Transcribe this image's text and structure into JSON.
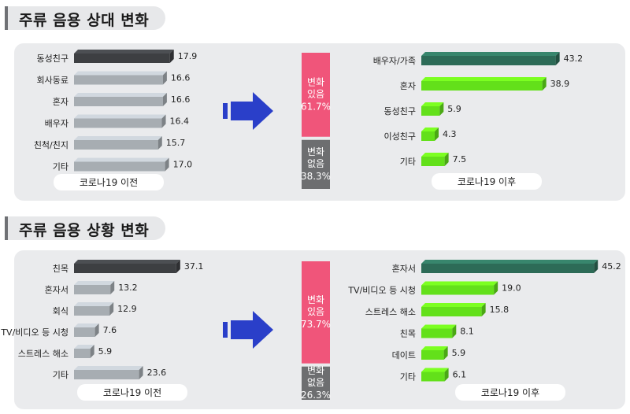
{
  "sections": [
    {
      "title": "주류 음용 상대 변화",
      "before": {
        "caption": "코로나19 이전",
        "categories": [
          "동성친구",
          "회사동료",
          "혼자",
          "배우자",
          "친척/친지",
          "기타"
        ],
        "values": [
          17.9,
          16.6,
          16.6,
          16.4,
          15.7,
          17.0
        ],
        "value_labels": [
          "17.9",
          "16.6",
          "16.6",
          "16.4",
          "15.7",
          "17.0"
        ]
      },
      "change": {
        "changed_label": "변화\n있음",
        "changed_value": "61.7%",
        "unchanged_label": "변화\n없음",
        "unchanged_value": "38.3%",
        "changed_pct": 61.7
      },
      "after": {
        "caption": "코로나19 이후",
        "categories": [
          "배우자/가족",
          "혼자",
          "동성친구",
          "이성친구",
          "기타"
        ],
        "values": [
          43.2,
          38.9,
          5.9,
          4.3,
          7.5
        ],
        "value_labels": [
          "43.2",
          "38.9",
          "5.9",
          "4.3",
          "7.5"
        ]
      }
    },
    {
      "title": "주류 음용 상황 변화",
      "before": {
        "caption": "코로나19 이전",
        "categories": [
          "친목",
          "혼자서",
          "회식",
          "TV/비디오 등 시청",
          "스트레스 해소",
          "기타"
        ],
        "values": [
          37.1,
          13.2,
          12.9,
          7.6,
          5.9,
          23.6
        ],
        "value_labels": [
          "37.1",
          "13.2",
          "12.9",
          "7.6",
          "5.9",
          "23.6"
        ]
      },
      "change": {
        "changed_label": "변화\n있음",
        "changed_value": "73.7%",
        "unchanged_label": "변화\n없음",
        "unchanged_value": "26.3%",
        "changed_pct": 73.7
      },
      "after": {
        "caption": "코로나19 이후",
        "categories": [
          "혼자서",
          "TV/비디오 등 시청",
          "스트레스 해소",
          "친목",
          "데이트",
          "기타"
        ],
        "values": [
          45.2,
          19.0,
          15.8,
          8.1,
          5.9,
          6.1
        ],
        "value_labels": [
          "45.2",
          "19.0",
          "15.8",
          "8.1",
          "5.9",
          "6.1"
        ]
      }
    }
  ],
  "chart_data": [
    {
      "type": "bar",
      "title": "주류 음용 상대 변화",
      "series": [
        {
          "name": "코로나19 이전",
          "categories": [
            "동성친구",
            "회사동료",
            "혼자",
            "배우자",
            "친척/친지",
            "기타"
          ],
          "values": [
            17.9,
            16.6,
            16.6,
            16.4,
            15.7,
            17.0
          ]
        },
        {
          "name": "코로나19 이후",
          "categories": [
            "배우자/가족",
            "혼자",
            "동성친구",
            "이성친구",
            "기타"
          ],
          "values": [
            43.2,
            38.9,
            5.9,
            4.3,
            7.5
          ]
        }
      ],
      "change_share": {
        "changed": 61.7,
        "unchanged": 38.3
      }
    },
    {
      "type": "bar",
      "title": "주류 음용 상황 변화",
      "series": [
        {
          "name": "코로나19 이전",
          "categories": [
            "친목",
            "혼자서",
            "회식",
            "TV/비디오 등 시청",
            "스트레스 해소",
            "기타"
          ],
          "values": [
            37.1,
            13.2,
            12.9,
            7.6,
            5.9,
            23.6
          ]
        },
        {
          "name": "코로나19 이후",
          "categories": [
            "혼자서",
            "TV/비디오 등 시청",
            "스트레스 해소",
            "친목",
            "데이트",
            "기타"
          ],
          "values": [
            45.2,
            19.0,
            15.8,
            8.1,
            5.9,
            6.1
          ]
        }
      ],
      "change_share": {
        "changed": 73.7,
        "unchanged": 26.3
      }
    }
  ],
  "colors": {
    "before_top_bar": "#3d3f42",
    "before_bar": "#a7adb2",
    "after_top_bar": "#2d6b57",
    "after_bar": "#63e01a",
    "changed_box": "#f0557a",
    "unchanged_box": "#6d6e70",
    "arrow": "#2a3fc9"
  }
}
